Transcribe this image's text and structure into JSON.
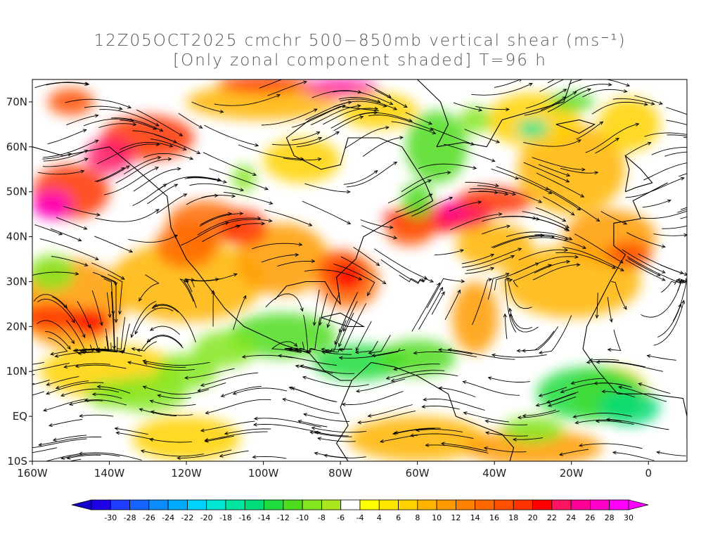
{
  "title": {
    "line1": "12Z05OCT2025 cmchr 500−850mb vertical shear (ms⁻¹)",
    "line2": "[Only zonal component shaded] T=96 h"
  },
  "axes": {
    "x_ticks": [
      "160W",
      "140W",
      "120W",
      "100W",
      "80W",
      "60W",
      "40W",
      "20W",
      "0"
    ],
    "y_ticks": [
      "70N",
      "60N",
      "50N",
      "40N",
      "30N",
      "20N",
      "10N",
      "EQ",
      "10S"
    ]
  },
  "colorbar": {
    "levels": [
      "-30",
      "-28",
      "-26",
      "-24",
      "-22",
      "-20",
      "-18",
      "-16",
      "-14",
      "-12",
      "-10",
      "-8",
      "-6",
      "-4",
      "4",
      "6",
      "8",
      "10",
      "12",
      "14",
      "16",
      "18",
      "20",
      "22",
      "24",
      "26",
      "28",
      "30"
    ],
    "colors": [
      "#1e00e6",
      "#1e3cff",
      "#1464ff",
      "#0a8cff",
      "#00aaff",
      "#00d2ff",
      "#00e6d2",
      "#00e6a0",
      "#00dc78",
      "#1edc3c",
      "#50dc1e",
      "#82e61e",
      "#aae61e",
      "#ffffff",
      "#ffff00",
      "#ffe600",
      "#ffd200",
      "#ffb400",
      "#ff9b00",
      "#ff8200",
      "#ff6900",
      "#ff5000",
      "#ff3200",
      "#ff0000",
      "#ff1464",
      "#ff0096",
      "#ff00c8",
      "#ff00ff"
    ],
    "under_color": "#1400c8",
    "over_color": "#ff00ff"
  },
  "chart_data": {
    "type": "heatmap",
    "title": "12Z05OCT2025 cmchr 500−850mb vertical shear (ms⁻¹) [Only zonal component shaded] T=96 h",
    "xlabel": "",
    "ylabel": "",
    "xlim": [
      -160,
      10
    ],
    "ylim": [
      -10,
      75
    ],
    "x_ticks": [
      "160W",
      "140W",
      "120W",
      "100W",
      "80W",
      "60W",
      "40W",
      "20W",
      "0"
    ],
    "y_ticks": [
      "70N",
      "60N",
      "50N",
      "40N",
      "30N",
      "20N",
      "10N",
      "EQ",
      "10S"
    ],
    "color_levels": [
      -30,
      -28,
      -26,
      -24,
      -22,
      -20,
      -18,
      -16,
      -14,
      -12,
      -10,
      -8,
      -6,
      -4,
      4,
      6,
      8,
      10,
      12,
      14,
      16,
      18,
      20,
      22,
      24,
      26,
      28,
      30
    ],
    "overlay": "streamlines"
  }
}
